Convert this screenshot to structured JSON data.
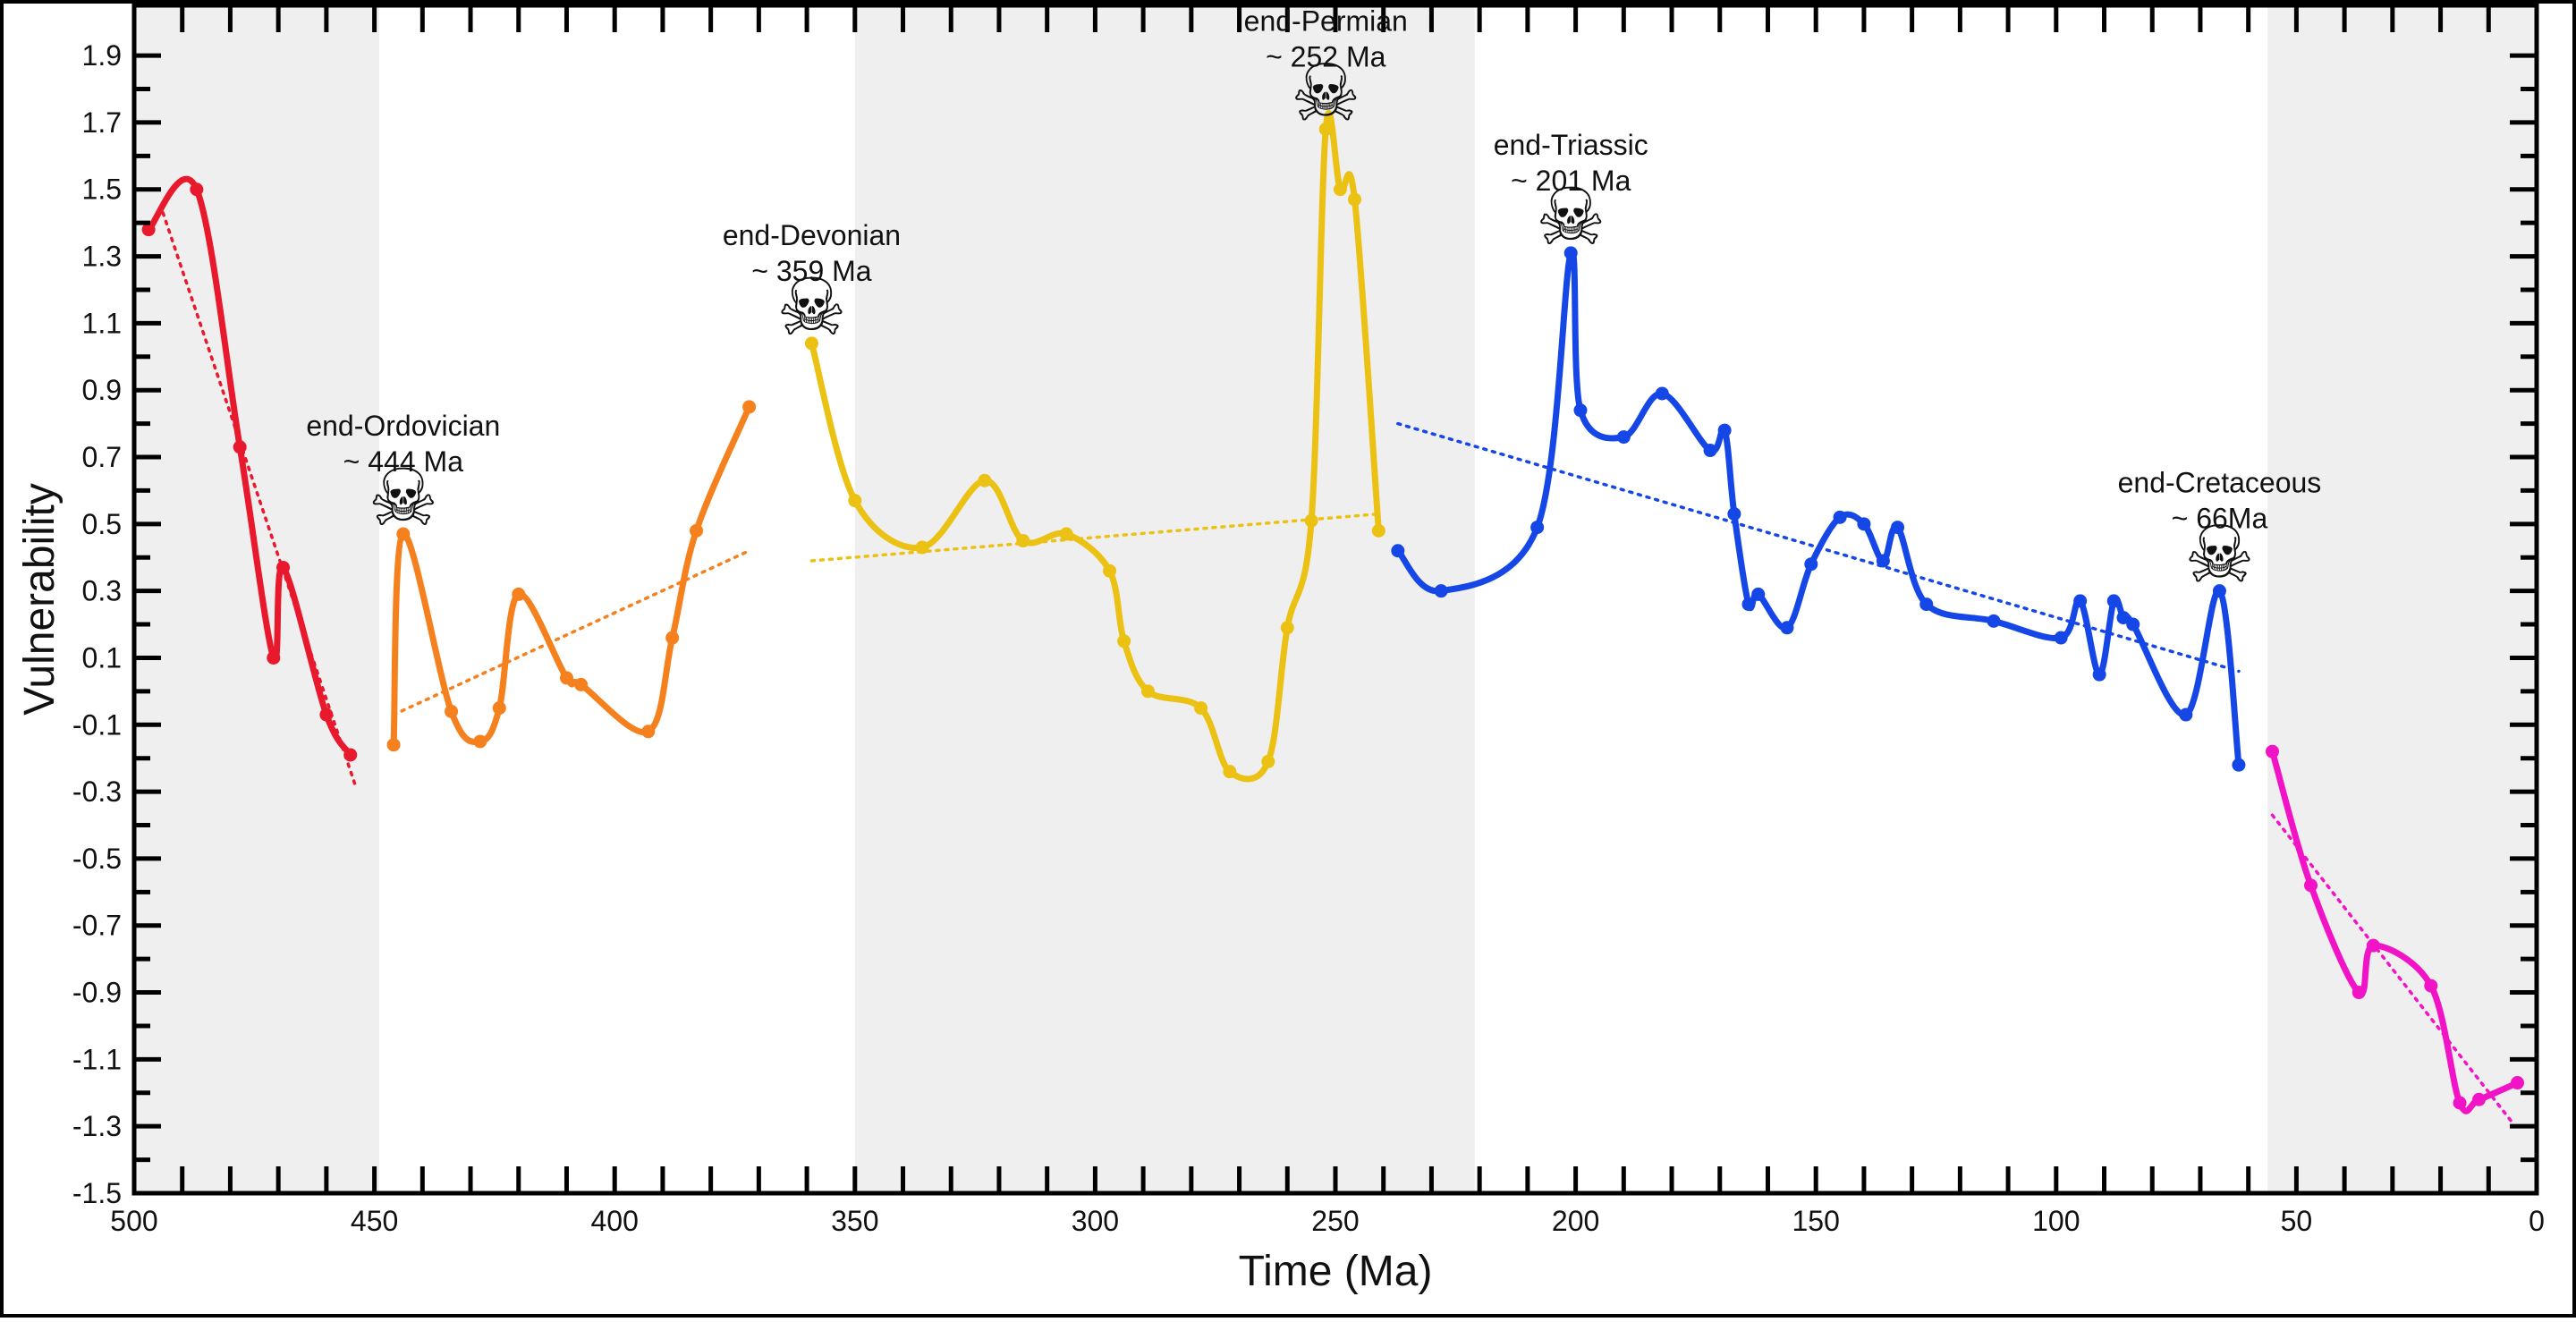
{
  "chart_data": {
    "type": "line",
    "xlabel": "Time (Ma)",
    "ylabel": "Vulnerability",
    "xlim": [
      500,
      0
    ],
    "ylim": [
      -1.5,
      2.05
    ],
    "x_ticks": [
      "500",
      "450",
      "400",
      "350",
      "300",
      "250",
      "200",
      "150",
      "100",
      "50",
      "0"
    ],
    "y_ticks": [
      "1.9",
      "1.7",
      "1.5",
      "1.3",
      "1.1",
      "0.9",
      "0.7",
      "0.5",
      "0.3",
      "0.1",
      "-0.1",
      "-0.3",
      "-0.5",
      "-0.7",
      "-0.9",
      "-1.1",
      "-1.3",
      "-1.5"
    ],
    "grid": false,
    "shaded_bands": [
      [
        500,
        449
      ],
      [
        350,
        221
      ],
      [
        56,
        0
      ]
    ],
    "band_color": "#efefef",
    "series": [
      {
        "color": "#e8192c",
        "x": [
          497,
          487,
          478,
          471,
          469,
          460,
          455
        ],
        "y": [
          1.38,
          1.5,
          0.73,
          0.1,
          0.37,
          -0.07,
          -0.19
        ],
        "trend": [
          [
            494,
            1.43
          ],
          [
            454,
            -0.28
          ]
        ]
      },
      {
        "color": "#f5801e",
        "x": [
          446,
          444,
          434,
          428,
          424,
          420,
          410,
          407,
          393,
          388,
          383,
          372
        ],
        "y": [
          -0.16,
          0.47,
          -0.06,
          -0.15,
          -0.05,
          0.29,
          0.04,
          0.02,
          -0.12,
          0.16,
          0.48,
          0.85
        ],
        "trend": [
          [
            446,
            -0.07
          ],
          [
            372,
            0.42
          ]
        ]
      },
      {
        "color": "#ebc114",
        "x": [
          359,
          350,
          336,
          323,
          315,
          306,
          297,
          294,
          289,
          278,
          272,
          264,
          260,
          255,
          252,
          249,
          246,
          241
        ],
        "y": [
          1.04,
          0.57,
          0.43,
          0.63,
          0.45,
          0.47,
          0.36,
          0.15,
          0.0,
          -0.05,
          -0.24,
          -0.21,
          0.19,
          0.51,
          1.68,
          1.5,
          1.47,
          0.48
        ],
        "trend": [
          [
            359,
            0.39
          ],
          [
            241,
            0.53
          ]
        ]
      },
      {
        "color": "#1547e6",
        "x": [
          237,
          228,
          208,
          201,
          199,
          190,
          182,
          172,
          169,
          167,
          164,
          162,
          156,
          151,
          145,
          140,
          136,
          133,
          127,
          113,
          99,
          95,
          91,
          88,
          86,
          84,
          73,
          66,
          62
        ],
        "y": [
          0.42,
          0.3,
          0.49,
          1.31,
          0.84,
          0.76,
          0.89,
          0.72,
          0.78,
          0.53,
          0.26,
          0.29,
          0.19,
          0.38,
          0.52,
          0.5,
          0.39,
          0.49,
          0.26,
          0.21,
          0.16,
          0.27,
          0.05,
          0.27,
          0.22,
          0.2,
          -0.07,
          0.3,
          -0.22
        ],
        "trend": [
          [
            237,
            0.8
          ],
          [
            62,
            0.06
          ]
        ]
      },
      {
        "color": "#f014c6",
        "x": [
          55,
          47,
          37,
          34,
          22,
          16,
          12,
          4
        ],
        "y": [
          -0.18,
          -0.58,
          -0.9,
          -0.76,
          -0.88,
          -1.23,
          -1.22,
          -1.17
        ],
        "trend": [
          [
            55,
            -0.37
          ],
          [
            5,
            -1.29
          ]
        ]
      }
    ],
    "annotations": [
      {
        "x": 444,
        "y": 0.47,
        "label": "end-Ordovician",
        "age": "~ 444 Ma"
      },
      {
        "x": 359,
        "y": 1.04,
        "label": "end-Devonian",
        "age": "~ 359 Ma"
      },
      {
        "x": 252,
        "y": 1.68,
        "label": "end-Permian",
        "age": "~ 252 Ma"
      },
      {
        "x": 201,
        "y": 1.31,
        "label": "end-Triassic",
        "age": "~ 201 Ma"
      },
      {
        "x": 66,
        "y": 0.3,
        "label": "end-Cretaceous",
        "age": "~ 66Ma"
      }
    ],
    "annotation_icon": "skull-and-crossbones-icon",
    "annotation_glyph": "☠"
  }
}
